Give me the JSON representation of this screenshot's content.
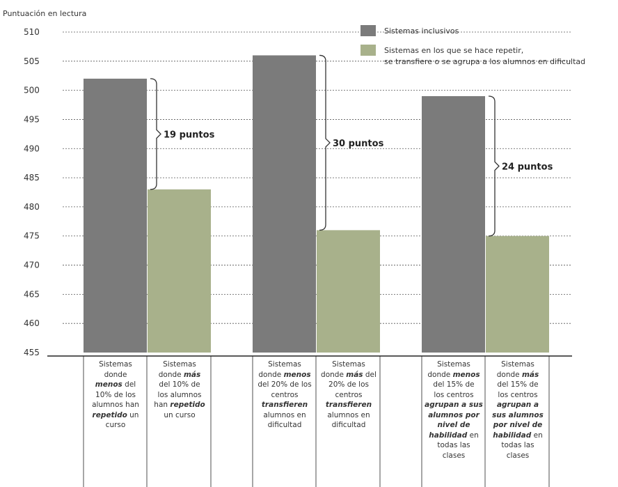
{
  "chart_data": {
    "type": "bar",
    "ylabel": "Puntuación en lectura",
    "ylim": [
      455,
      510
    ],
    "yticks": [
      510,
      505,
      500,
      495,
      490,
      485,
      480,
      475,
      470,
      465,
      460,
      455
    ],
    "grid": true,
    "legend_placement": "top-right",
    "series": [
      {
        "name": "Sistemas inclusivos",
        "color": "#7b7b7b"
      },
      {
        "name": "Sistemas en los que se hace repetir, se transfiere o se agrupa a los alumnos en dificultad",
        "color": "#a8b18b"
      }
    ],
    "legend": [
      {
        "lines": [
          "Sistemas inclusivos"
        ]
      },
      {
        "lines": [
          "Sistemas en los que se hace repetir,",
          "se transfiere o se agrupa a los alumnos en dificultad"
        ]
      }
    ],
    "groups": [
      {
        "bars": [
          {
            "series": 0,
            "value": 502,
            "label_html": "Sistemas<br>donde<br><b><i>menos</i></b> del<br>10% de los<br>alumnos han<br><b><i>repetido</i></b> un<br>curso"
          },
          {
            "series": 1,
            "value": 483,
            "label_html": "Sistemas<br>donde <b><i>más</i></b><br>del 10% de<br>los alumnos<br>han <b><i>repetido</i></b><br>un curso"
          }
        ],
        "bracket_label": "19 puntos"
      },
      {
        "bars": [
          {
            "series": 0,
            "value": 506,
            "label_html": "Sistemas<br>donde <b><i>menos</i></b><br>del 20% de los<br>centros<br><b><i>transfieren</i></b><br>alumnos en<br>dificultad"
          },
          {
            "series": 1,
            "value": 476,
            "label_html": "Sistemas<br>donde <b><i>más</i></b> del<br>20% de los<br>centros<br><b><i>transfieren</i></b><br>alumnos en<br>dificultad"
          }
        ],
        "bracket_label": "30 puntos"
      },
      {
        "bars": [
          {
            "series": 0,
            "value": 499,
            "label_html": "Sistemas<br>donde <b><i>menos</i></b><br>del 15% de<br>los centros<br><b><i>agrupan a sus</i></b><br><b><i>alumnos por</i></b><br><b><i>nivel de</i></b><br><b><i>habilidad</i></b> en<br>todas las<br>clases"
          },
          {
            "series": 1,
            "value": 475,
            "label_html": "Sistemas<br>donde <b><i>más</i></b><br>del 15% de<br>los centros<br><b><i>agrupan a</i></b><br><b><i>sus alumnos</i></b><br><b><i>por nivel de</i></b><br><b><i>habilidad</i></b> en<br>todas las<br>clases"
          }
        ],
        "bracket_label": "24 puntos"
      }
    ]
  }
}
